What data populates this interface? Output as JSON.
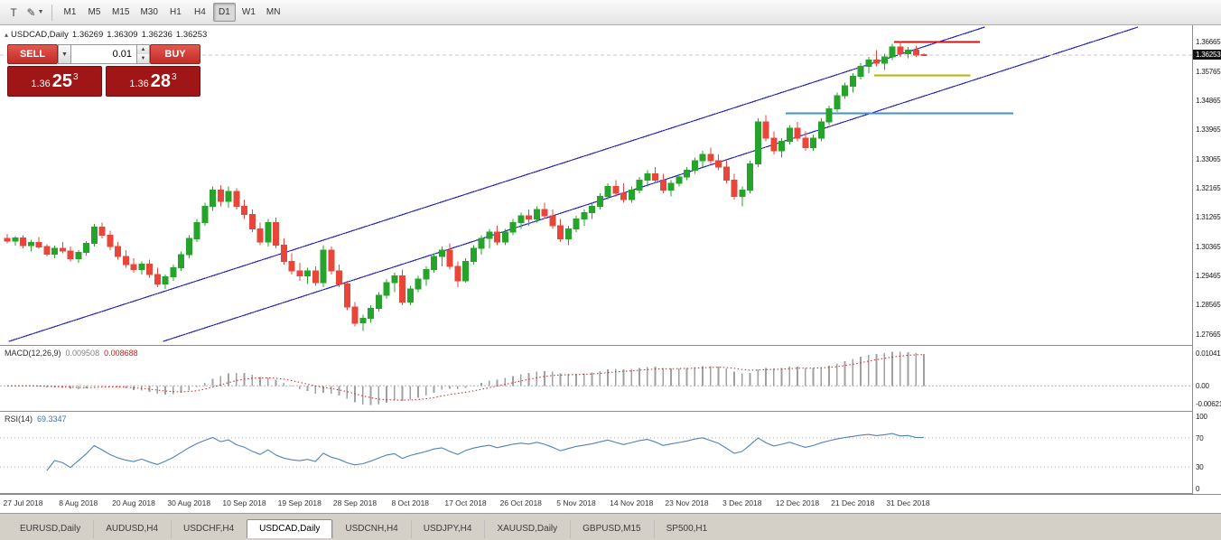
{
  "toolbar": {
    "text_tool_label": "T",
    "draw_tool_glyph": "✎",
    "timeframes": [
      {
        "label": "M1",
        "active": false
      },
      {
        "label": "M5",
        "active": false
      },
      {
        "label": "M15",
        "active": false
      },
      {
        "label": "M30",
        "active": false
      },
      {
        "label": "H1",
        "active": false
      },
      {
        "label": "H4",
        "active": false
      },
      {
        "label": "D1",
        "active": true
      },
      {
        "label": "W1",
        "active": false
      },
      {
        "label": "MN",
        "active": false
      }
    ]
  },
  "chart": {
    "toggle_glyph": "▴",
    "title": "USDCAD,Daily",
    "open": "1.36269",
    "high": "1.36309",
    "low": "1.36236",
    "close": "1.36253"
  },
  "trade_panel": {
    "sell_label": "SELL",
    "buy_label": "BUY",
    "lot_value": "0.01",
    "bid": {
      "prefix": "1.36",
      "big": "25",
      "sup": "3"
    },
    "ask": {
      "prefix": "1.36",
      "big": "28",
      "sup": "3"
    }
  },
  "macd_panel": {
    "name": "MACD(12,26,9)",
    "value_main": "0.009508",
    "value_signal": "0.008688",
    "scale_top": "0.010412",
    "scale_zero": "0.00",
    "scale_bottom": "-0.006215"
  },
  "rsi_panel": {
    "name": "RSI(14)",
    "value": "69.3347",
    "scale": [
      "100",
      "70",
      "30",
      "0"
    ],
    "levels": [
      70,
      30
    ]
  },
  "bottom_tabs": {
    "active_index": 3,
    "tabs": [
      "EURUSD,Daily",
      "AUDUSD,H4",
      "USDCHF,H4",
      "USDCAD,Daily",
      "USDCNH,H4",
      "USDJPY,H4",
      "XAUUSD,Daily",
      "GBPUSD,M15",
      "SP500,H1"
    ]
  },
  "colors": {
    "bull": "#26a32a",
    "bear": "#e8463a",
    "channel": "#2929c8",
    "hline_red": "#cc1414",
    "hline_yellow": "#b8b400",
    "hline_blue": "#3f8fd2",
    "macd_hist": "#a0a0a0",
    "macd_signal": "#cc2222",
    "rsi_line": "#4f81bd",
    "bid_line": "#c8c8c8",
    "price_box_bg": "#121212"
  },
  "chart_data": {
    "type": "candlestick",
    "symbol": "USDCAD",
    "timeframe": "Daily",
    "current_ohlc": {
      "open": 1.36269,
      "high": 1.36309,
      "low": 1.36236,
      "close": 1.36253
    },
    "current_price": 1.36253,
    "price_axis": {
      "view_max": 1.3717,
      "view_min": 1.27325,
      "tick_step": 0.009,
      "ticks": [
        "1.36665",
        "1.35765",
        "1.34865",
        "1.33965",
        "1.33065",
        "1.32165",
        "1.31265",
        "1.30365",
        "1.29465",
        "1.28565",
        "1.27665"
      ]
    },
    "date_ticks": {
      "indices": [
        2,
        9,
        16,
        23,
        30,
        37,
        44,
        51,
        58,
        65,
        72,
        79,
        86,
        93,
        100,
        107,
        114
      ],
      "labels": [
        "27 Jul 2018",
        "8 Aug 2018",
        "20 Aug 2018",
        "30 Aug 2018",
        "10 Sep 2018",
        "19 Sep 2018",
        "28 Sep 2018",
        "8 Oct 2018",
        "17 Oct 2018",
        "26 Oct 2018",
        "5 Nov 2018",
        "14 Nov 2018",
        "23 Nov 2018",
        "3 Dec 2018",
        "12 Dec 2018",
        "21 Dec 2018",
        "31 Dec 2018"
      ]
    },
    "indicators": [
      {
        "name": "MACD",
        "params": [
          12,
          26,
          9
        ],
        "last_main": 0.009508,
        "last_signal": 0.008688
      },
      {
        "name": "RSI",
        "params": [
          14
        ],
        "last_value": 69.3347,
        "levels": [
          70,
          30
        ]
      }
    ],
    "overlays": {
      "channel_lines": [
        {
          "from": {
            "index": 0.2,
            "price": 1.27433
          },
          "to": {
            "index": 123.7,
            "price": 1.37114
          }
        },
        {
          "from": {
            "index": 19.7,
            "price": 1.27433
          },
          "to": {
            "index": 143.1,
            "price": 1.37114
          }
        }
      ],
      "horizontal_segments": [
        {
          "price": 1.3666,
          "from_index": 112.2,
          "to_index": 123.1,
          "color_key": "hline_red"
        },
        {
          "price": 1.3563,
          "from_index": 109.7,
          "to_index": 121.9,
          "color_key": "hline_yellow"
        },
        {
          "price": 1.3446,
          "from_index": 98.5,
          "to_index": 127.3,
          "color_key": "hline_blue"
        }
      ]
    },
    "candles": [
      [
        1.306,
        1.3075,
        1.3045,
        1.3052
      ],
      [
        1.3052,
        1.3068,
        1.3038,
        1.3062
      ],
      [
        1.3062,
        1.307,
        1.303,
        1.3038
      ],
      [
        1.3038,
        1.3056,
        1.302,
        1.3048
      ],
      [
        1.3048,
        1.3065,
        1.3028,
        1.3035
      ],
      [
        1.3035,
        1.3042,
        1.3005,
        1.3012
      ],
      [
        1.3012,
        1.3038,
        1.3,
        1.303
      ],
      [
        1.303,
        1.305,
        1.3015,
        1.3022
      ],
      [
        1.3022,
        1.3035,
        1.299,
        1.2998
      ],
      [
        1.2998,
        1.3025,
        1.2985,
        1.3018
      ],
      [
        1.3018,
        1.3052,
        1.3008,
        1.3045
      ],
      [
        1.3045,
        1.3105,
        1.3035,
        1.3095
      ],
      [
        1.3095,
        1.311,
        1.306,
        1.307
      ],
      [
        1.307,
        1.3085,
        1.3025,
        1.3035
      ],
      [
        1.3035,
        1.305,
        1.2995,
        1.3005
      ],
      [
        1.3005,
        1.3025,
        1.297,
        1.298
      ],
      [
        1.298,
        1.3,
        1.2955,
        1.2965
      ],
      [
        1.2965,
        1.299,
        1.295,
        1.2982
      ],
      [
        1.2982,
        1.2995,
        1.294,
        1.295
      ],
      [
        1.295,
        1.297,
        1.291,
        1.292
      ],
      [
        1.292,
        1.295,
        1.2905,
        1.2942
      ],
      [
        1.2942,
        1.298,
        1.293,
        1.297
      ],
      [
        1.297,
        1.302,
        1.296,
        1.301
      ],
      [
        1.301,
        1.307,
        1.3,
        1.306
      ],
      [
        1.306,
        1.312,
        1.305,
        1.311
      ],
      [
        1.311,
        1.317,
        1.31,
        1.316
      ],
      [
        1.316,
        1.322,
        1.3145,
        1.321
      ],
      [
        1.321,
        1.3225,
        1.316,
        1.3175
      ],
      [
        1.3175,
        1.322,
        1.3155,
        1.3205
      ],
      [
        1.3205,
        1.3215,
        1.315,
        1.316
      ],
      [
        1.316,
        1.318,
        1.312,
        1.3135
      ],
      [
        1.3135,
        1.315,
        1.308,
        1.309
      ],
      [
        1.309,
        1.311,
        1.304,
        1.305
      ],
      [
        1.305,
        1.312,
        1.3035,
        1.311
      ],
      [
        1.311,
        1.3125,
        1.303,
        1.304
      ],
      [
        1.304,
        1.306,
        1.298,
        1.299
      ],
      [
        1.299,
        1.3015,
        1.295,
        1.296
      ],
      [
        1.296,
        1.2985,
        1.293,
        1.2945
      ],
      [
        1.2945,
        1.297,
        1.292,
        1.296
      ],
      [
        1.296,
        1.2975,
        1.2915,
        1.2925
      ],
      [
        1.2925,
        1.304,
        1.291,
        1.3025
      ],
      [
        1.3025,
        1.3035,
        1.295,
        1.296
      ],
      [
        1.296,
        1.298,
        1.291,
        1.292
      ],
      [
        1.292,
        1.293,
        1.284,
        1.285
      ],
      [
        1.285,
        1.2865,
        1.279,
        1.28
      ],
      [
        1.28,
        1.2825,
        1.2775,
        1.2815
      ],
      [
        1.2815,
        1.2855,
        1.28,
        1.2845
      ],
      [
        1.2845,
        1.2895,
        1.2835,
        1.2885
      ],
      [
        1.2885,
        1.2935,
        1.2875,
        1.2925
      ],
      [
        1.2925,
        1.2955,
        1.2895,
        1.2945
      ],
      [
        1.2945,
        1.2965,
        1.2855,
        1.2865
      ],
      [
        1.2865,
        1.2915,
        1.2855,
        1.2905
      ],
      [
        1.2905,
        1.2945,
        1.2895,
        1.2935
      ],
      [
        1.2935,
        1.2975,
        1.2915,
        1.2965
      ],
      [
        1.2965,
        1.3015,
        1.2955,
        1.3005
      ],
      [
        1.3005,
        1.3035,
        1.2975,
        1.3025
      ],
      [
        1.3025,
        1.3045,
        1.2965,
        1.2975
      ],
      [
        1.2975,
        1.299,
        1.291,
        1.293
      ],
      [
        1.293,
        1.3,
        1.2925,
        1.299
      ],
      [
        1.299,
        1.304,
        1.298,
        1.303
      ],
      [
        1.303,
        1.307,
        1.301,
        1.306
      ],
      [
        1.306,
        1.309,
        1.303,
        1.308
      ],
      [
        1.308,
        1.31,
        1.304,
        1.305
      ],
      [
        1.305,
        1.309,
        1.304,
        1.308
      ],
      [
        1.308,
        1.312,
        1.307,
        1.311
      ],
      [
        1.311,
        1.314,
        1.309,
        1.313
      ],
      [
        1.313,
        1.315,
        1.31,
        1.312
      ],
      [
        1.312,
        1.316,
        1.311,
        1.315
      ],
      [
        1.315,
        1.317,
        1.312,
        1.313
      ],
      [
        1.313,
        1.315,
        1.309,
        1.31
      ],
      [
        1.31,
        1.312,
        1.305,
        1.306
      ],
      [
        1.306,
        1.31,
        1.304,
        1.309
      ],
      [
        1.309,
        1.313,
        1.308,
        1.312
      ],
      [
        1.312,
        1.315,
        1.31,
        1.314
      ],
      [
        1.314,
        1.317,
        1.312,
        1.316
      ],
      [
        1.316,
        1.32,
        1.315,
        1.319
      ],
      [
        1.319,
        1.323,
        1.318,
        1.322
      ],
      [
        1.322,
        1.324,
        1.319,
        1.32
      ],
      [
        1.32,
        1.323,
        1.317,
        1.318
      ],
      [
        1.318,
        1.322,
        1.317,
        1.321
      ],
      [
        1.321,
        1.325,
        1.32,
        1.324
      ],
      [
        1.324,
        1.327,
        1.322,
        1.326
      ],
      [
        1.326,
        1.328,
        1.323,
        1.324
      ],
      [
        1.324,
        1.326,
        1.32,
        1.321
      ],
      [
        1.321,
        1.324,
        1.319,
        1.323
      ],
      [
        1.323,
        1.326,
        1.322,
        1.325
      ],
      [
        1.325,
        1.328,
        1.324,
        1.327
      ],
      [
        1.327,
        1.331,
        1.326,
        1.33
      ],
      [
        1.33,
        1.333,
        1.328,
        1.332
      ],
      [
        1.332,
        1.334,
        1.329,
        1.33
      ],
      [
        1.33,
        1.332,
        1.327,
        1.328
      ],
      [
        1.328,
        1.33,
        1.323,
        1.324
      ],
      [
        1.324,
        1.326,
        1.318,
        1.319
      ],
      [
        1.319,
        1.322,
        1.316,
        1.321
      ],
      [
        1.321,
        1.33,
        1.32,
        1.329
      ],
      [
        1.329,
        1.343,
        1.328,
        1.342
      ],
      [
        1.342,
        1.344,
        1.336,
        1.337
      ],
      [
        1.337,
        1.339,
        1.332,
        1.333
      ],
      [
        1.333,
        1.337,
        1.331,
        1.336
      ],
      [
        1.336,
        1.341,
        1.335,
        1.34
      ],
      [
        1.34,
        1.342,
        1.336,
        1.337
      ],
      [
        1.337,
        1.339,
        1.333,
        1.334
      ],
      [
        1.334,
        1.338,
        1.333,
        1.337
      ],
      [
        1.337,
        1.343,
        1.336,
        1.342
      ],
      [
        1.342,
        1.347,
        1.341,
        1.346
      ],
      [
        1.346,
        1.351,
        1.345,
        1.35
      ],
      [
        1.35,
        1.354,
        1.349,
        1.353
      ],
      [
        1.353,
        1.357,
        1.351,
        1.356
      ],
      [
        1.356,
        1.36,
        1.355,
        1.359
      ],
      [
        1.359,
        1.362,
        1.357,
        1.361
      ],
      [
        1.361,
        1.364,
        1.359,
        1.36
      ],
      [
        1.36,
        1.363,
        1.358,
        1.362
      ],
      [
        1.362,
        1.366,
        1.361,
        1.365
      ],
      [
        1.365,
        1.36665,
        1.362,
        1.363
      ],
      [
        1.363,
        1.365,
        1.3615,
        1.364
      ],
      [
        1.364,
        1.3655,
        1.362,
        1.3625
      ],
      [
        1.36269,
        1.36309,
        1.36236,
        1.36253
      ]
    ]
  }
}
